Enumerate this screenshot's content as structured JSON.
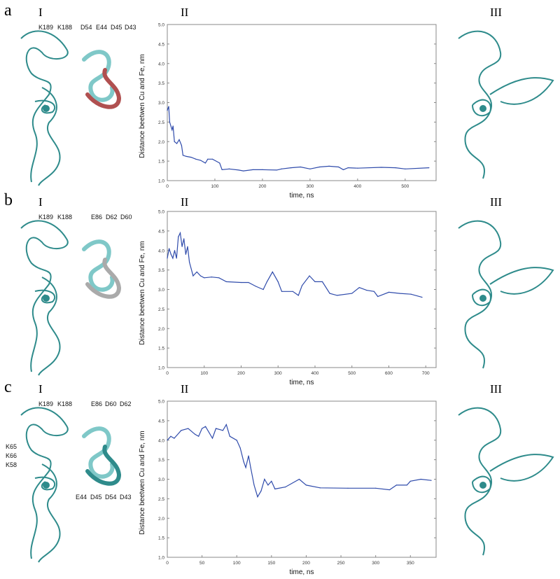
{
  "panels": [
    {
      "letter": "a",
      "roman": [
        "I",
        "II",
        "III"
      ],
      "residues_top": [
        "K189",
        "K188",
        "D54",
        "E44",
        "D45",
        "D43"
      ]
    },
    {
      "letter": "b",
      "roman": [
        "I",
        "II",
        "III"
      ],
      "residues_top": [
        "K189",
        "K188",
        "E86",
        "D62",
        "D60"
      ]
    },
    {
      "letter": "c",
      "roman": [
        "I",
        "II",
        "III"
      ],
      "residues_top": [
        "K189",
        "K188",
        "E86",
        "D60",
        "D62"
      ],
      "residues_left": [
        "K65",
        "K66",
        "K58"
      ],
      "residues_bottom": [
        "E44",
        "D45",
        "D54",
        "D43"
      ]
    }
  ],
  "colors": {
    "line": "#2f4bab",
    "ribbon": "#2e8b8b",
    "ribbon_light": "#7fc8c8",
    "ribbon_red": "#b05050"
  },
  "chart_data": [
    {
      "type": "line",
      "xlabel": "time, ns",
      "ylabel": "Distance beetwen Cu and Fe, nm",
      "xlim": [
        0,
        565
      ],
      "ylim": [
        1.0,
        5.0
      ],
      "xticks": [
        0,
        100,
        200,
        300,
        400,
        500
      ],
      "yticks": [
        "1.0",
        "1.5",
        "2.0",
        "2.5",
        "3.0",
        "3.5",
        "4.0",
        "4.5",
        "5.0"
      ],
      "grid": false,
      "x": [
        0,
        3,
        5,
        10,
        12,
        15,
        20,
        25,
        30,
        33,
        40,
        50,
        60,
        70,
        80,
        85,
        95,
        110,
        115,
        130,
        150,
        160,
        180,
        200,
        230,
        240,
        260,
        280,
        300,
        320,
        340,
        360,
        370,
        380,
        400,
        450,
        480,
        500,
        550
      ],
      "y": [
        2.8,
        2.9,
        2.5,
        2.3,
        2.4,
        2.0,
        1.95,
        2.05,
        1.9,
        1.65,
        1.62,
        1.6,
        1.55,
        1.52,
        1.45,
        1.55,
        1.55,
        1.45,
        1.28,
        1.3,
        1.27,
        1.25,
        1.28,
        1.28,
        1.27,
        1.3,
        1.33,
        1.35,
        1.3,
        1.35,
        1.37,
        1.35,
        1.28,
        1.33,
        1.32,
        1.34,
        1.33,
        1.3,
        1.33
      ]
    },
    {
      "type": "line",
      "xlabel": "time, ns",
      "ylabel": "Distance beetwen Cu and Fe, nm",
      "xlim": [
        0,
        728
      ],
      "ylim": [
        1.0,
        5.0
      ],
      "xticks": [
        0,
        100,
        200,
        300,
        400,
        500,
        600,
        700
      ],
      "yticks": [
        "1.0",
        "1.5",
        "2.0",
        "2.5",
        "3.0",
        "3.5",
        "4.0",
        "4.5",
        "5.0"
      ],
      "grid": false,
      "x": [
        0,
        5,
        10,
        15,
        20,
        25,
        30,
        35,
        40,
        45,
        50,
        55,
        60,
        70,
        80,
        90,
        100,
        120,
        140,
        160,
        200,
        220,
        240,
        260,
        270,
        285,
        300,
        310,
        340,
        355,
        365,
        385,
        400,
        420,
        440,
        460,
        500,
        520,
        540,
        560,
        570,
        600,
        630,
        660,
        690
      ],
      "y": [
        3.8,
        4.05,
        3.9,
        3.8,
        4.0,
        3.8,
        4.35,
        4.45,
        4.1,
        4.3,
        3.9,
        4.1,
        3.7,
        3.35,
        3.45,
        3.35,
        3.3,
        3.32,
        3.3,
        3.2,
        3.18,
        3.18,
        3.08,
        3.0,
        3.2,
        3.45,
        3.2,
        2.95,
        2.95,
        2.85,
        3.1,
        3.35,
        3.2,
        3.2,
        2.9,
        2.85,
        2.9,
        3.05,
        2.98,
        2.95,
        2.82,
        2.93,
        2.9,
        2.88,
        2.8
      ]
    },
    {
      "type": "line",
      "xlabel": "time, ns",
      "ylabel": "Distance beetwen Cu and Fe, nm",
      "xlim": [
        0,
        387
      ],
      "ylim": [
        1.0,
        5.0
      ],
      "xticks": [
        0,
        50,
        100,
        150,
        200,
        250,
        300,
        350
      ],
      "yticks": [
        "1.0",
        "1.5",
        "2.0",
        "2.5",
        "3.0",
        "3.5",
        "4.0",
        "4.5",
        "5.0"
      ],
      "grid": false,
      "x": [
        0,
        5,
        10,
        20,
        30,
        40,
        45,
        50,
        55,
        65,
        70,
        80,
        85,
        90,
        100,
        105,
        110,
        113,
        117,
        120,
        125,
        130,
        135,
        140,
        145,
        150,
        155,
        170,
        190,
        200,
        220,
        260,
        300,
        320,
        330,
        345,
        350,
        365,
        380
      ],
      "y": [
        4.0,
        4.1,
        4.05,
        4.25,
        4.3,
        4.15,
        4.1,
        4.3,
        4.35,
        4.05,
        4.3,
        4.25,
        4.4,
        4.1,
        4.0,
        3.8,
        3.45,
        3.3,
        3.6,
        3.3,
        2.85,
        2.55,
        2.7,
        3.0,
        2.85,
        2.95,
        2.75,
        2.8,
        3.0,
        2.85,
        2.78,
        2.77,
        2.77,
        2.73,
        2.85,
        2.85,
        2.95,
        3.0,
        2.97
      ]
    }
  ]
}
